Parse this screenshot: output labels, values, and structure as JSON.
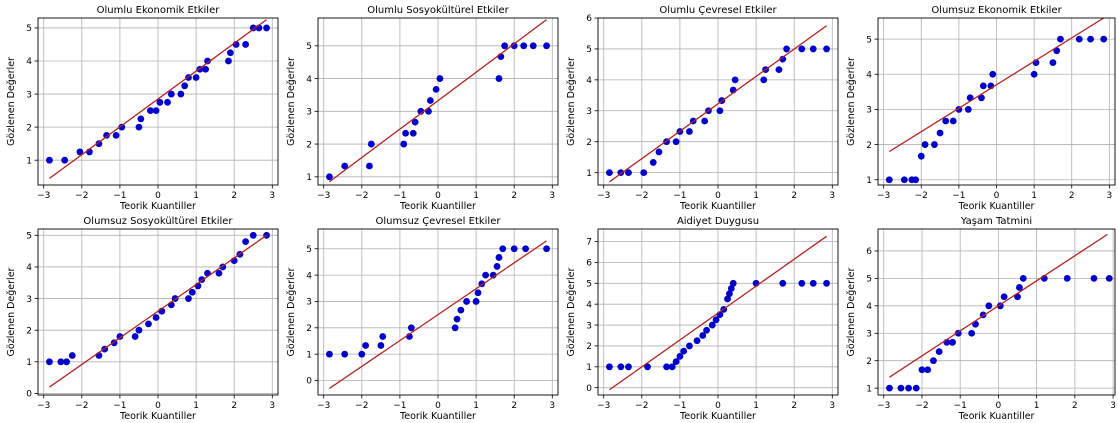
{
  "figure": {
    "background": "#ffffff"
  },
  "style": {
    "point_color": "#0000cc",
    "line_color": "#b22222",
    "grid_color": "#b0b0b0"
  },
  "chart_data": [
    {
      "type": "scatter",
      "title": "Olumlu Ekonomik Etkiler",
      "xlabel": "Teorik Kuantiller",
      "ylabel": "Gözlenen Değerler",
      "xlim": [
        -3.15,
        3.15
      ],
      "ylim": [
        0.25,
        5.3
      ],
      "xticks": [
        -3,
        -2,
        -1,
        0,
        1,
        2,
        3
      ],
      "yticks": [
        1,
        2,
        3,
        4,
        5
      ],
      "grid": true,
      "fit_line": {
        "x": [
          -2.85,
          2.85
        ],
        "y": [
          0.45,
          5.25
        ]
      },
      "series": [
        {
          "points": [
            [
              -2.85,
              1
            ],
            [
              -2.45,
              1
            ],
            [
              -2.05,
              1.25
            ],
            [
              -1.8,
              1.25
            ],
            [
              -1.55,
              1.5
            ],
            [
              -1.35,
              1.75
            ],
            [
              -1.1,
              1.75
            ],
            [
              -0.95,
              2
            ],
            [
              -0.5,
              2
            ],
            [
              -0.45,
              2.25
            ],
            [
              -0.2,
              2.5
            ],
            [
              -0.05,
              2.5
            ],
            [
              0.05,
              2.75
            ],
            [
              0.25,
              2.75
            ],
            [
              0.35,
              3
            ],
            [
              0.6,
              3
            ],
            [
              0.7,
              3.25
            ],
            [
              0.8,
              3.5
            ],
            [
              1.0,
              3.5
            ],
            [
              1.1,
              3.75
            ],
            [
              1.25,
              3.75
            ],
            [
              1.3,
              4
            ],
            [
              1.85,
              4
            ],
            [
              1.9,
              4.25
            ],
            [
              2.05,
              4.5
            ],
            [
              2.3,
              4.5
            ],
            [
              2.5,
              5
            ],
            [
              2.65,
              5
            ],
            [
              2.85,
              5
            ]
          ]
        }
      ]
    },
    {
      "type": "scatter",
      "title": "Olumlu Sosyokültürel Etkiler",
      "xlabel": "Teorik Kuantiller",
      "ylabel": "Gözlenen Değerler",
      "xlim": [
        -3.15,
        3.15
      ],
      "ylim": [
        0.75,
        5.85
      ],
      "xticks": [
        -3,
        -2,
        -1,
        0,
        1,
        2,
        3
      ],
      "yticks": [
        1,
        2,
        3,
        4,
        5
      ],
      "grid": true,
      "fit_line": {
        "x": [
          -2.85,
          2.85
        ],
        "y": [
          0.85,
          5.8
        ]
      },
      "series": [
        {
          "points": [
            [
              -2.85,
              1
            ],
            [
              -2.45,
              1.33
            ],
            [
              -1.8,
              1.33
            ],
            [
              -1.75,
              2
            ],
            [
              -0.9,
              2
            ],
            [
              -0.85,
              2.33
            ],
            [
              -0.65,
              2.33
            ],
            [
              -0.6,
              2.67
            ],
            [
              -0.45,
              3
            ],
            [
              -0.25,
              3
            ],
            [
              -0.2,
              3.33
            ],
            [
              -0.05,
              3.67
            ],
            [
              0.05,
              4
            ],
            [
              1.6,
              4
            ],
            [
              1.65,
              4.67
            ],
            [
              1.75,
              5
            ],
            [
              2.0,
              5
            ],
            [
              2.25,
              5
            ],
            [
              2.5,
              5
            ],
            [
              2.85,
              5
            ]
          ]
        }
      ]
    },
    {
      "type": "scatter",
      "title": "Olumlu Çevresel Etkiler",
      "xlabel": "Teorik Kuantiller",
      "ylabel": "Gözlenen Değerler",
      "xlim": [
        -3.15,
        3.15
      ],
      "ylim": [
        0.6,
        6.0
      ],
      "xticks": [
        -3,
        -2,
        -1,
        0,
        1,
        2,
        3
      ],
      "yticks": [
        1,
        2,
        3,
        4,
        5,
        6
      ],
      "grid": true,
      "fit_line": {
        "x": [
          -2.85,
          2.85
        ],
        "y": [
          0.7,
          5.75
        ]
      },
      "series": [
        {
          "points": [
            [
              -2.85,
              1
            ],
            [
              -2.55,
              1
            ],
            [
              -2.35,
              1
            ],
            [
              -1.95,
              1
            ],
            [
              -1.7,
              1.33
            ],
            [
              -1.55,
              1.67
            ],
            [
              -1.35,
              2
            ],
            [
              -1.1,
              2
            ],
            [
              -1.0,
              2.33
            ],
            [
              -0.75,
              2.33
            ],
            [
              -0.65,
              2.67
            ],
            [
              -0.35,
              2.67
            ],
            [
              -0.25,
              3
            ],
            [
              0.05,
              3
            ],
            [
              0.1,
              3.33
            ],
            [
              0.4,
              3.67
            ],
            [
              0.45,
              4
            ],
            [
              1.2,
              4
            ],
            [
              1.25,
              4.33
            ],
            [
              1.6,
              4.33
            ],
            [
              1.7,
              4.67
            ],
            [
              1.8,
              5
            ],
            [
              2.2,
              5
            ],
            [
              2.5,
              5
            ],
            [
              2.85,
              5
            ]
          ]
        }
      ]
    },
    {
      "type": "scatter",
      "title": "Olumsuz Ekonomik Etkiler",
      "xlabel": "Teorik Kuantiller",
      "ylabel": "Gözlenen Değerler",
      "xlim": [
        -3.15,
        3.15
      ],
      "ylim": [
        0.85,
        5.6
      ],
      "xticks": [
        -3,
        -2,
        -1,
        0,
        1,
        2,
        3
      ],
      "yticks": [
        1,
        2,
        3,
        4,
        5
      ],
      "grid": true,
      "fit_line": {
        "x": [
          -2.85,
          2.85
        ],
        "y": [
          1.8,
          5.6
        ]
      },
      "series": [
        {
          "points": [
            [
              -2.85,
              1
            ],
            [
              -2.45,
              1
            ],
            [
              -2.25,
              1
            ],
            [
              -2.15,
              1
            ],
            [
              -2.0,
              1.67
            ],
            [
              -1.9,
              2
            ],
            [
              -1.65,
              2
            ],
            [
              -1.5,
              2.33
            ],
            [
              -1.35,
              2.67
            ],
            [
              -1.15,
              2.67
            ],
            [
              -1.0,
              3
            ],
            [
              -0.75,
              3
            ],
            [
              -0.7,
              3.33
            ],
            [
              -0.4,
              3.33
            ],
            [
              -0.35,
              3.67
            ],
            [
              -0.15,
              3.67
            ],
            [
              -0.1,
              4
            ],
            [
              1.0,
              4
            ],
            [
              1.05,
              4.33
            ],
            [
              1.5,
              4.33
            ],
            [
              1.6,
              4.67
            ],
            [
              1.7,
              5
            ],
            [
              2.2,
              5
            ],
            [
              2.5,
              5
            ],
            [
              2.85,
              5
            ]
          ]
        }
      ]
    },
    {
      "type": "scatter",
      "title": "Olumsuz Sosyokültürel Etkiler",
      "xlabel": "Teorik Kuantiller",
      "ylabel": "Gözlenen Değerler",
      "xlim": [
        -3.15,
        3.15
      ],
      "ylim": [
        -0.05,
        5.2
      ],
      "xticks": [
        -3,
        -2,
        -1,
        0,
        1,
        2,
        3
      ],
      "yticks": [
        0,
        1,
        2,
        3,
        4,
        5
      ],
      "grid": true,
      "fit_line": {
        "x": [
          -2.85,
          2.85
        ],
        "y": [
          0.2,
          5.0
        ]
      },
      "series": [
        {
          "points": [
            [
              -2.85,
              1
            ],
            [
              -2.55,
              1
            ],
            [
              -2.4,
              1
            ],
            [
              -2.25,
              1.2
            ],
            [
              -1.55,
              1.2
            ],
            [
              -1.4,
              1.4
            ],
            [
              -1.15,
              1.6
            ],
            [
              -1.0,
              1.8
            ],
            [
              -0.6,
              1.8
            ],
            [
              -0.5,
              2.0
            ],
            [
              -0.25,
              2.2
            ],
            [
              -0.05,
              2.4
            ],
            [
              0.1,
              2.6
            ],
            [
              0.35,
              2.8
            ],
            [
              0.45,
              3.0
            ],
            [
              0.8,
              3.0
            ],
            [
              0.9,
              3.2
            ],
            [
              1.05,
              3.4
            ],
            [
              1.15,
              3.6
            ],
            [
              1.3,
              3.8
            ],
            [
              1.6,
              3.8
            ],
            [
              1.7,
              4.0
            ],
            [
              2.0,
              4.2
            ],
            [
              2.15,
              4.4
            ],
            [
              2.3,
              4.8
            ],
            [
              2.5,
              5
            ],
            [
              2.85,
              5
            ]
          ]
        }
      ]
    },
    {
      "type": "scatter",
      "title": "Olumsuz Çevresel Etkiler",
      "xlabel": "Teorik Kuantiller",
      "ylabel": "Gözlenen Değerler",
      "xlim": [
        -3.15,
        3.15
      ],
      "ylim": [
        -0.55,
        5.75
      ],
      "xticks": [
        -3,
        -2,
        -1,
        0,
        1,
        2,
        3
      ],
      "yticks": [
        0,
        1,
        2,
        3,
        4,
        5
      ],
      "grid": true,
      "fit_line": {
        "x": [
          -2.85,
          2.85
        ],
        "y": [
          -0.3,
          5.3
        ]
      },
      "series": [
        {
          "points": [
            [
              -2.85,
              1
            ],
            [
              -2.45,
              1
            ],
            [
              -2.0,
              1
            ],
            [
              -1.9,
              1.33
            ],
            [
              -1.5,
              1.33
            ],
            [
              -1.45,
              1.67
            ],
            [
              -0.75,
              1.67
            ],
            [
              -0.7,
              2
            ],
            [
              0.45,
              2
            ],
            [
              0.5,
              2.33
            ],
            [
              0.6,
              2.67
            ],
            [
              0.75,
              3
            ],
            [
              1.0,
              3
            ],
            [
              1.05,
              3.33
            ],
            [
              1.15,
              3.67
            ],
            [
              1.25,
              4
            ],
            [
              1.45,
              4
            ],
            [
              1.55,
              4.33
            ],
            [
              1.6,
              4.67
            ],
            [
              1.7,
              5
            ],
            [
              2.0,
              5
            ],
            [
              2.3,
              5
            ],
            [
              2.85,
              5
            ]
          ]
        }
      ]
    },
    {
      "type": "scatter",
      "title": "Aidiyet Duygusu",
      "xlabel": "Teorik Kuantiller",
      "ylabel": "Gözlenen Değerler",
      "xlim": [
        -3.15,
        3.15
      ],
      "ylim": [
        -0.35,
        7.6
      ],
      "xticks": [
        -3,
        -2,
        -1,
        0,
        1,
        2,
        3
      ],
      "yticks": [
        0,
        1,
        2,
        3,
        4,
        5,
        6,
        7
      ],
      "grid": true,
      "fit_line": {
        "x": [
          -2.85,
          2.85
        ],
        "y": [
          -0.1,
          7.25
        ]
      },
      "series": [
        {
          "points": [
            [
              -2.85,
              1
            ],
            [
              -2.55,
              1
            ],
            [
              -2.35,
              1
            ],
            [
              -1.85,
              1
            ],
            [
              -1.35,
              1
            ],
            [
              -1.2,
              1
            ],
            [
              -1.1,
              1.25
            ],
            [
              -1.0,
              1.5
            ],
            [
              -0.9,
              1.75
            ],
            [
              -0.75,
              2
            ],
            [
              -0.55,
              2.25
            ],
            [
              -0.4,
              2.5
            ],
            [
              -0.3,
              2.75
            ],
            [
              -0.15,
              3
            ],
            [
              -0.05,
              3.25
            ],
            [
              0.05,
              3.5
            ],
            [
              0.15,
              3.75
            ],
            [
              0.25,
              4.25
            ],
            [
              0.3,
              4.5
            ],
            [
              0.35,
              4.75
            ],
            [
              0.4,
              5
            ],
            [
              1.0,
              5
            ],
            [
              1.7,
              5
            ],
            [
              2.2,
              5
            ],
            [
              2.5,
              5
            ],
            [
              2.85,
              5
            ]
          ]
        }
      ]
    },
    {
      "type": "scatter",
      "title": "Yaşam Tatmini",
      "xlabel": "Teorik Kuantiller",
      "ylabel": "Gözlenen Değerler",
      "xlim": [
        -3.15,
        3.05
      ],
      "ylim": [
        0.75,
        6.8
      ],
      "xticks": [
        -3,
        -2,
        -1,
        0,
        1,
        2,
        3
      ],
      "yticks": [
        1,
        2,
        3,
        4,
        5,
        6
      ],
      "grid": true,
      "fit_line": {
        "x": [
          -2.85,
          2.85
        ],
        "y": [
          1.4,
          6.6
        ]
      },
      "series": [
        {
          "points": [
            [
              -2.85,
              1
            ],
            [
              -2.55,
              1
            ],
            [
              -2.35,
              1
            ],
            [
              -2.15,
              1
            ],
            [
              -2.0,
              1.67
            ],
            [
              -1.85,
              1.67
            ],
            [
              -1.7,
              2
            ],
            [
              -1.55,
              2.33
            ],
            [
              -1.35,
              2.67
            ],
            [
              -1.2,
              2.67
            ],
            [
              -1.05,
              3
            ],
            [
              -0.7,
              3
            ],
            [
              -0.6,
              3.33
            ],
            [
              -0.4,
              3.67
            ],
            [
              -0.25,
              4
            ],
            [
              0.05,
              4
            ],
            [
              0.15,
              4.33
            ],
            [
              0.5,
              4.33
            ],
            [
              0.55,
              4.67
            ],
            [
              0.65,
              5
            ],
            [
              1.2,
              5
            ],
            [
              1.8,
              5
            ],
            [
              2.5,
              5
            ],
            [
              2.9,
              5
            ]
          ]
        }
      ]
    }
  ]
}
